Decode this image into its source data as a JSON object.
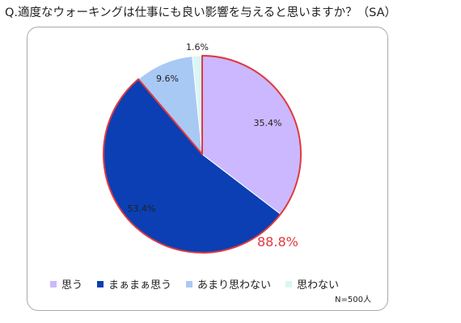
{
  "question": "Q.適度なウォーキングは仕事にも良い影響を与えると思いますか？（SA）",
  "chart_data": {
    "type": "pie",
    "title": "Q.適度なウォーキングは仕事にも良い影響を与えると思いますか？（SA）",
    "categories": [
      "思う",
      "まぁまぁ思う",
      "あまり思わない",
      "思わない"
    ],
    "values": [
      35.4,
      53.4,
      9.6,
      1.6
    ],
    "labels": [
      "35.4%",
      "53.4%",
      "9.6%",
      "1.6%"
    ],
    "colors": [
      "#cbb8ff",
      "#0b3fb3",
      "#a9c9f5",
      "#d8f7f5"
    ],
    "highlight": {
      "label": "88.8%",
      "covers": [
        "思う",
        "まぁまぁ思う"
      ],
      "color": "#e0393f"
    },
    "legend_position": "bottom",
    "note": "N=500人"
  }
}
